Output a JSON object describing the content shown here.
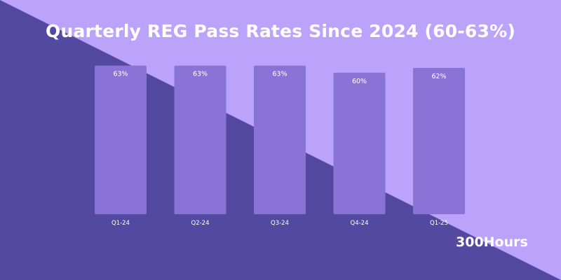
{
  "title": "Quarterly REG Pass Rates Since 2024 (60-63%)",
  "brand": "300Hours",
  "colors": {
    "background_light": "#bba2fb",
    "background_dark": "#5449a0",
    "bar": "#8a73d6",
    "text": "#ffffff"
  },
  "chart_data": {
    "type": "bar",
    "title": "Quarterly REG Pass Rates Since 2024 (60-63%)",
    "categories": [
      "Q1-24",
      "Q2-24",
      "Q3-24",
      "Q4-24",
      "Q1-25"
    ],
    "values": [
      63,
      63,
      63,
      60,
      62
    ],
    "data_labels": [
      "63%",
      "63%",
      "63%",
      "60%",
      "62%"
    ],
    "xlabel": "",
    "ylabel": "",
    "ylim": [
      0,
      63
    ],
    "grid": false,
    "legend": "none"
  }
}
